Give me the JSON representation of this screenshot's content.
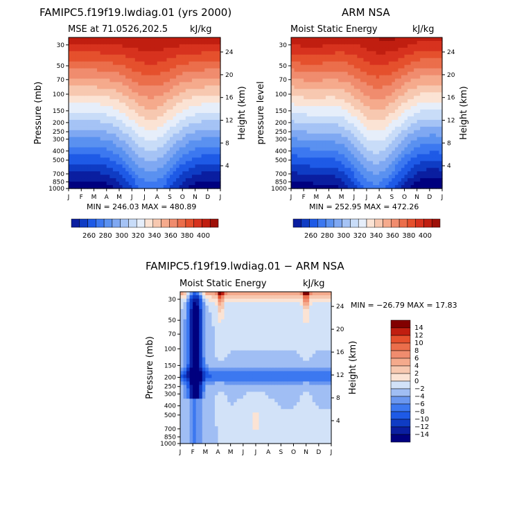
{
  "colors": {
    "palette": [
      "#00007f",
      "#0a1ea0",
      "#0f3cc4",
      "#1e5ae6",
      "#3c78f0",
      "#5a91f0",
      "#7fa8f2",
      "#a5c3f5",
      "#c8dcf8",
      "#e6eefa",
      "#fbe3d4",
      "#f7c8b0",
      "#f5aa8c",
      "#f08c6e",
      "#eb6e4b",
      "#e5502d",
      "#d7321e",
      "#c01e10",
      "#9e1008",
      "#820000"
    ],
    "diff_palette": [
      "#00007f",
      "#0a1ea0",
      "#0f3cc4",
      "#1e5ae6",
      "#3c78f0",
      "#6a97f0",
      "#a0bef4",
      "#d2e2f8",
      "#fbe3d4",
      "#f7c8b0",
      "#f5aa8c",
      "#f08c6e",
      "#eb6e4b",
      "#e5502d",
      "#c01e10",
      "#820000"
    ]
  },
  "chart_data": [
    {
      "type": "heatmap",
      "panel": "model",
      "title": "FAMIPC5.f19f19.lwdiag.01 (yrs 2000)",
      "subtitle_left": "MSE at 71.0526,202.5",
      "subtitle_right": "kJ/kg",
      "xlabel": "",
      "ylabel": "Pressure (mb)",
      "y2label": "Height (km)",
      "x_ticks": [
        "J",
        "F",
        "M",
        "A",
        "M",
        "J",
        "J",
        "A",
        "S",
        "O",
        "N",
        "D",
        "J"
      ],
      "y_ticks": [
        "30",
        "50",
        "70",
        "100",
        "150",
        "200",
        "250",
        "300",
        "400",
        "500",
        "700",
        "850",
        "1000"
      ],
      "y2_ticks": [
        "24",
        "20",
        "16",
        "12",
        "8",
        "4"
      ],
      "ylim": [
        1000,
        25
      ],
      "levels": [
        260,
        280,
        300,
        320,
        340,
        360,
        380,
        400
      ],
      "min_max_text": "MIN = 246.03 MAX = 480.89",
      "colorbar_labels": [
        "260",
        "280",
        "300",
        "320",
        "340",
        "360",
        "380",
        "400"
      ],
      "values_description": "moist static energy by month and pressure level"
    },
    {
      "type": "heatmap",
      "panel": "obs",
      "title": "ARM NSA",
      "subtitle_left": "Moist Static Energy",
      "subtitle_right": "kJ/kg",
      "ylabel": "pressure level",
      "y2label": "Height (km)",
      "x_ticks": [
        "J",
        "F",
        "M",
        "A",
        "M",
        "J",
        "J",
        "A",
        "S",
        "O",
        "N",
        "D",
        "J"
      ],
      "y_ticks": [
        "30",
        "50",
        "70",
        "100",
        "150",
        "200",
        "250",
        "300",
        "400",
        "500",
        "700",
        "850",
        "1000"
      ],
      "y2_ticks": [
        "24",
        "20",
        "16",
        "12",
        "8",
        "4"
      ],
      "ylim": [
        1000,
        25
      ],
      "min_max_text": "MIN = 252.95 MAX = 472.26",
      "colorbar_labels": [
        "260",
        "280",
        "300",
        "320",
        "340",
        "360",
        "380",
        "400"
      ]
    },
    {
      "type": "heatmap",
      "panel": "difference",
      "title": "FAMIPC5.f19f19.lwdiag.01 − ARM NSA",
      "subtitle_left": "Moist Static Energy",
      "subtitle_right": "kJ/kg",
      "ylabel": "Pressure (mb)",
      "y2label": "Height (km)",
      "x_ticks": [
        "J",
        "F",
        "M",
        "A",
        "M",
        "J",
        "J",
        "A",
        "S",
        "O",
        "N",
        "D",
        "J"
      ],
      "y_ticks": [
        "30",
        "50",
        "70",
        "100",
        "150",
        "200",
        "250",
        "300",
        "400",
        "500",
        "700",
        "850",
        "1000"
      ],
      "y2_ticks": [
        "24",
        "20",
        "16",
        "12",
        "8",
        "4"
      ],
      "ylim": [
        1000,
        25
      ],
      "min_max_text": "MIN = −26.79 MAX =   17.83",
      "colorbar_labels": [
        "14",
        "12",
        "10",
        "8",
        "6",
        "4",
        "2",
        "0",
        "−2",
        "−4",
        "−6",
        "−8",
        "−10",
        "−12",
        "−14"
      ]
    }
  ]
}
